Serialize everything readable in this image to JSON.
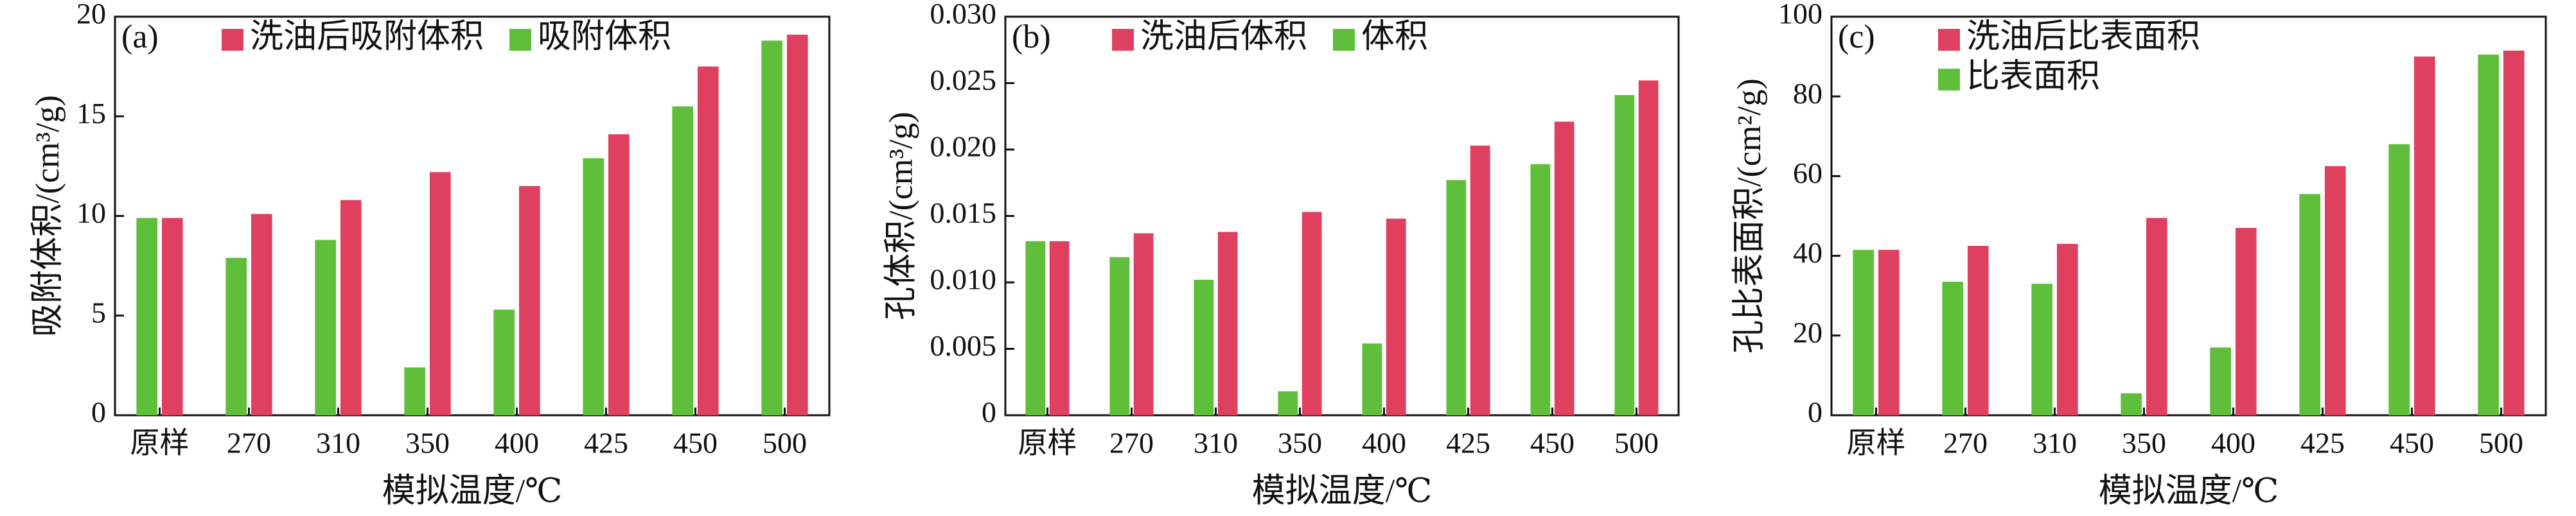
{
  "chart_data": [
    {
      "type": "bar",
      "panel_label": "(a)",
      "y_label": "吸附体积/(cm³/g)",
      "x_label": "模拟温度/℃",
      "categories": [
        "原样",
        "270",
        "310",
        "350",
        "400",
        "425",
        "450",
        "500"
      ],
      "series": [
        {
          "name": "洗油后吸附体积",
          "color": "#e0405f",
          "values": [
            9.9,
            10.1,
            10.8,
            12.2,
            11.5,
            14.1,
            17.5,
            19.1
          ]
        },
        {
          "name": "吸附体积",
          "color": "#5fbf3a",
          "values": [
            9.9,
            7.9,
            8.8,
            2.4,
            5.3,
            12.9,
            15.5,
            18.8
          ]
        }
      ],
      "ylim": [
        0,
        20
      ],
      "yticks": [
        0,
        5,
        10,
        15,
        20
      ],
      "legend_layout": "row",
      "grid": false
    },
    {
      "type": "bar",
      "panel_label": "(b)",
      "y_label": "孔体积/(cm³/g)",
      "x_label": "模拟温度/℃",
      "categories": [
        "原样",
        "270",
        "310",
        "350",
        "400",
        "425",
        "450",
        "500"
      ],
      "series": [
        {
          "name": "洗油后体积",
          "color": "#e0405f",
          "values": [
            0.0131,
            0.0137,
            0.0138,
            0.0153,
            0.0148,
            0.0203,
            0.0221,
            0.0252
          ]
        },
        {
          "name": "体积",
          "color": "#5fbf3a",
          "values": [
            0.0131,
            0.0119,
            0.0102,
            0.0018,
            0.0054,
            0.0177,
            0.0189,
            0.0241
          ]
        }
      ],
      "ylim": [
        0,
        0.03
      ],
      "yticks": [
        0,
        0.005,
        {
          "value": 0.01,
          "label": "0.010"
        },
        0.015,
        {
          "value": 0.02,
          "label": "0.020"
        },
        0.025,
        {
          "value": 0.03,
          "label": "0.030"
        }
      ],
      "legend_layout": "row",
      "grid": false
    },
    {
      "type": "bar",
      "panel_label": "(c)",
      "y_label": "孔比表面积/(cm²/g)",
      "x_label": "模拟温度/℃",
      "categories": [
        "原样",
        "270",
        "310",
        "350",
        "400",
        "425",
        "450",
        "500"
      ],
      "series": [
        {
          "name": "洗油后比表面积",
          "color": "#e0405f",
          "values": [
            41.5,
            42.5,
            43,
            49.5,
            47,
            62.5,
            90,
            91.5
          ]
        },
        {
          "name": "比表面积",
          "color": "#5fbf3a",
          "values": [
            41.5,
            33.5,
            33,
            5.5,
            17,
            55.5,
            68,
            90.5
          ]
        }
      ],
      "ylim": [
        0,
        100
      ],
      "yticks": [
        0,
        20,
        40,
        60,
        80,
        100
      ],
      "legend_layout": "column",
      "grid": false
    }
  ]
}
